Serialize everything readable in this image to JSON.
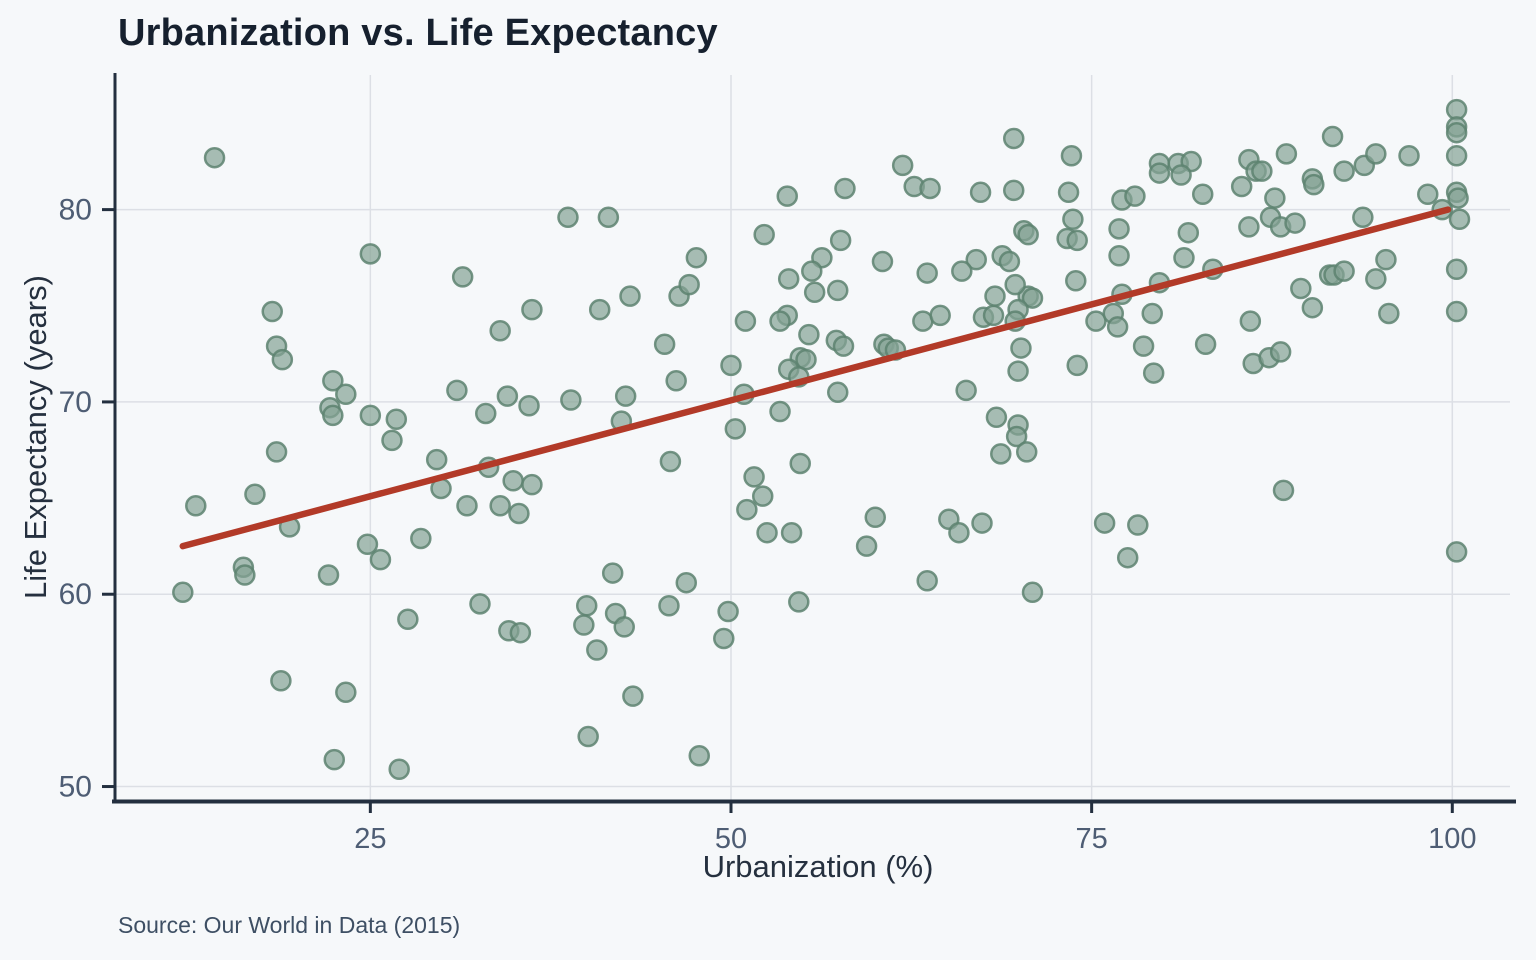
{
  "header": {
    "title": "Urbanization vs. Life Expectancy"
  },
  "footer": {
    "source": "Source: Our World in Data (2015)"
  },
  "chart_data": {
    "type": "scatter",
    "title": "Urbanization vs. Life Expectancy",
    "xlabel": "Urbanization (%)",
    "ylabel": "Life Expectancy (years)",
    "xlim": [
      7.3,
      104.0
    ],
    "ylim": [
      49.3,
      87.0
    ],
    "xticks": [
      25,
      50,
      75,
      100
    ],
    "yticks": [
      50,
      60,
      70,
      80
    ],
    "grid": true,
    "legend_position": "none",
    "marker": {
      "radius": 9.5,
      "fill": "#84a294",
      "fill_opacity": 0.7,
      "stroke": "#5d8270",
      "stroke_opacity": 0.85,
      "stroke_width": 2.5
    },
    "trendline": {
      "type": "linear",
      "x_start": 12.0,
      "y_start": 62.5,
      "x_end": 99.7,
      "y_end": 80.0,
      "color": "#b23a28",
      "width": 6.5
    },
    "colors": {
      "background": "#f6f8fa",
      "grid": "#dcdfe5",
      "axis": "#232f3f",
      "tick_label": "#4e5d74",
      "title": "#16202e",
      "axis_label": "#25303f",
      "source": "#3e4f64"
    },
    "points": [
      [
        14.2,
        82.7
      ],
      [
        38.7,
        79.6
      ],
      [
        25.0,
        77.7
      ],
      [
        31.4,
        76.5
      ],
      [
        18.2,
        74.7
      ],
      [
        36.2,
        74.8
      ],
      [
        34.0,
        73.7
      ],
      [
        18.5,
        72.9
      ],
      [
        18.9,
        72.2
      ],
      [
        22.4,
        71.1
      ],
      [
        23.3,
        70.4
      ],
      [
        22.2,
        69.7
      ],
      [
        22.4,
        69.3
      ],
      [
        25.0,
        69.3
      ],
      [
        26.8,
        69.1
      ],
      [
        31.0,
        70.6
      ],
      [
        34.5,
        70.3
      ],
      [
        36.0,
        69.8
      ],
      [
        33.0,
        69.4
      ],
      [
        38.9,
        70.1
      ],
      [
        26.5,
        68.0
      ],
      [
        41.5,
        79.6
      ],
      [
        53.9,
        80.7
      ],
      [
        57.9,
        81.1
      ],
      [
        61.9,
        82.3
      ],
      [
        62.7,
        81.2
      ],
      [
        63.8,
        81.1
      ],
      [
        67.3,
        80.9
      ],
      [
        69.6,
        83.7
      ],
      [
        69.6,
        81.0
      ],
      [
        52.3,
        78.7
      ],
      [
        57.6,
        78.4
      ],
      [
        47.6,
        77.5
      ],
      [
        56.3,
        77.5
      ],
      [
        55.6,
        76.8
      ],
      [
        54.0,
        76.4
      ],
      [
        60.5,
        77.3
      ],
      [
        67.0,
        77.4
      ],
      [
        63.6,
        76.7
      ],
      [
        66.0,
        76.8
      ],
      [
        68.8,
        77.6
      ],
      [
        70.3,
        78.9
      ],
      [
        70.6,
        78.7
      ],
      [
        69.3,
        77.3
      ],
      [
        43.0,
        75.5
      ],
      [
        40.9,
        74.8
      ],
      [
        46.4,
        75.5
      ],
      [
        47.1,
        76.1
      ],
      [
        55.8,
        75.7
      ],
      [
        57.4,
        75.8
      ],
      [
        53.9,
        74.5
      ],
      [
        53.4,
        74.2
      ],
      [
        51.0,
        74.2
      ],
      [
        63.3,
        74.2
      ],
      [
        64.5,
        74.5
      ],
      [
        67.5,
        74.4
      ],
      [
        68.2,
        74.5
      ],
      [
        68.3,
        75.5
      ],
      [
        70.6,
        75.5
      ],
      [
        70.9,
        75.4
      ],
      [
        69.7,
        76.1
      ],
      [
        55.4,
        73.5
      ],
      [
        57.3,
        73.2
      ],
      [
        57.8,
        72.9
      ],
      [
        60.6,
        73.0
      ],
      [
        60.9,
        72.8
      ],
      [
        61.4,
        72.7
      ],
      [
        54.8,
        72.3
      ],
      [
        55.2,
        72.2
      ],
      [
        54.0,
        71.7
      ],
      [
        54.7,
        71.3
      ],
      [
        50.0,
        71.9
      ],
      [
        45.4,
        73.0
      ],
      [
        46.2,
        71.1
      ],
      [
        50.9,
        70.4
      ],
      [
        42.7,
        70.3
      ],
      [
        42.4,
        69.0
      ],
      [
        53.4,
        69.5
      ],
      [
        57.4,
        70.5
      ],
      [
        66.3,
        70.6
      ],
      [
        50.3,
        68.6
      ],
      [
        69.9,
        71.6
      ],
      [
        70.1,
        72.8
      ],
      [
        69.9,
        74.8
      ],
      [
        69.7,
        74.2
      ],
      [
        68.4,
        69.2
      ],
      [
        69.9,
        68.8
      ],
      [
        69.8,
        68.2
      ],
      [
        73.6,
        82.8
      ],
      [
        79.7,
        82.4
      ],
      [
        79.7,
        81.9
      ],
      [
        81.0,
        82.4
      ],
      [
        81.9,
        82.5
      ],
      [
        81.2,
        81.8
      ],
      [
        85.9,
        82.6
      ],
      [
        86.4,
        82.0
      ],
      [
        86.8,
        82.0
      ],
      [
        85.4,
        81.2
      ],
      [
        88.5,
        82.9
      ],
      [
        91.7,
        83.8
      ],
      [
        90.3,
        81.6
      ],
      [
        90.4,
        81.3
      ],
      [
        92.5,
        82.0
      ],
      [
        93.9,
        82.3
      ],
      [
        94.7,
        82.9
      ],
      [
        97.0,
        82.8
      ],
      [
        100.3,
        85.2
      ],
      [
        100.3,
        84.3
      ],
      [
        100.3,
        84.0
      ],
      [
        100.3,
        82.8
      ],
      [
        98.3,
        80.8
      ],
      [
        100.3,
        80.9
      ],
      [
        100.4,
        80.6
      ],
      [
        99.3,
        80.0
      ],
      [
        100.5,
        79.5
      ],
      [
        77.1,
        80.5
      ],
      [
        78.0,
        80.7
      ],
      [
        82.7,
        80.8
      ],
      [
        87.7,
        80.6
      ],
      [
        87.4,
        79.6
      ],
      [
        88.1,
        79.1
      ],
      [
        89.1,
        79.3
      ],
      [
        85.9,
        79.1
      ],
      [
        93.8,
        79.6
      ],
      [
        76.9,
        79.0
      ],
      [
        73.4,
        80.9
      ],
      [
        73.7,
        79.5
      ],
      [
        73.3,
        78.5
      ],
      [
        74.0,
        78.4
      ],
      [
        81.7,
        78.8
      ],
      [
        76.9,
        77.6
      ],
      [
        81.4,
        77.5
      ],
      [
        83.4,
        76.9
      ],
      [
        95.4,
        77.4
      ],
      [
        73.9,
        76.3
      ],
      [
        79.7,
        76.2
      ],
      [
        91.5,
        76.6
      ],
      [
        91.8,
        76.6
      ],
      [
        92.5,
        76.8
      ],
      [
        94.7,
        76.4
      ],
      [
        89.5,
        75.9
      ],
      [
        100.3,
        76.9
      ],
      [
        77.1,
        75.6
      ],
      [
        75.3,
        74.2
      ],
      [
        76.5,
        74.6
      ],
      [
        76.8,
        73.9
      ],
      [
        79.2,
        74.6
      ],
      [
        90.3,
        74.9
      ],
      [
        95.6,
        74.6
      ],
      [
        100.3,
        74.7
      ],
      [
        78.6,
        72.9
      ],
      [
        82.9,
        73.0
      ],
      [
        86.0,
        74.2
      ],
      [
        86.2,
        72.0
      ],
      [
        87.3,
        72.3
      ],
      [
        88.1,
        72.6
      ],
      [
        74.0,
        71.9
      ],
      [
        79.3,
        71.5
      ],
      [
        18.5,
        67.4
      ],
      [
        12.9,
        64.6
      ],
      [
        17.0,
        65.2
      ],
      [
        19.4,
        63.5
      ],
      [
        24.8,
        62.6
      ],
      [
        25.7,
        61.8
      ],
      [
        16.2,
        61.4
      ],
      [
        16.3,
        61.0
      ],
      [
        22.1,
        61.0
      ],
      [
        12.0,
        60.1
      ],
      [
        28.5,
        62.9
      ],
      [
        29.6,
        67.0
      ],
      [
        29.9,
        65.5
      ],
      [
        33.2,
        66.6
      ],
      [
        34.9,
        65.9
      ],
      [
        36.2,
        65.7
      ],
      [
        31.7,
        64.6
      ],
      [
        34.0,
        64.6
      ],
      [
        35.3,
        64.2
      ],
      [
        27.6,
        58.7
      ],
      [
        32.6,
        59.5
      ],
      [
        34.6,
        58.1
      ],
      [
        35.4,
        58.0
      ],
      [
        18.8,
        55.5
      ],
      [
        23.3,
        54.9
      ],
      [
        22.5,
        51.4
      ],
      [
        27.0,
        50.9
      ],
      [
        45.8,
        66.9
      ],
      [
        51.6,
        66.1
      ],
      [
        52.2,
        65.1
      ],
      [
        51.1,
        64.4
      ],
      [
        52.5,
        63.2
      ],
      [
        54.2,
        63.2
      ],
      [
        54.8,
        66.8
      ],
      [
        60.0,
        64.0
      ],
      [
        59.4,
        62.5
      ],
      [
        65.1,
        63.9
      ],
      [
        65.8,
        63.2
      ],
      [
        67.4,
        63.7
      ],
      [
        63.6,
        60.7
      ],
      [
        68.7,
        67.3
      ],
      [
        70.5,
        67.4
      ],
      [
        70.9,
        60.1
      ],
      [
        41.8,
        61.1
      ],
      [
        46.9,
        60.6
      ],
      [
        45.7,
        59.4
      ],
      [
        49.8,
        59.1
      ],
      [
        49.5,
        57.7
      ],
      [
        54.7,
        59.6
      ],
      [
        40.0,
        59.4
      ],
      [
        39.8,
        58.4
      ],
      [
        42.0,
        59.0
      ],
      [
        42.6,
        58.3
      ],
      [
        40.7,
        57.1
      ],
      [
        43.2,
        54.7
      ],
      [
        40.1,
        52.6
      ],
      [
        47.8,
        51.6
      ],
      [
        75.9,
        63.7
      ],
      [
        78.2,
        63.6
      ],
      [
        77.5,
        61.9
      ],
      [
        88.3,
        65.4
      ],
      [
        100.3,
        62.2
      ]
    ]
  }
}
